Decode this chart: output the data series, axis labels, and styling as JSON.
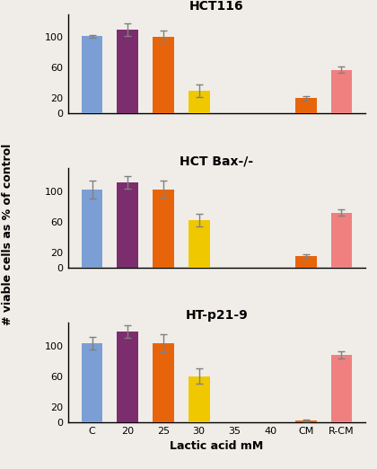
{
  "subplots": [
    {
      "title": "HCT116",
      "values": [
        101,
        110,
        100,
        30,
        0,
        0,
        20,
        57
      ],
      "errors": [
        2,
        8,
        8,
        8,
        0,
        0,
        3,
        4
      ],
      "has_bar": [
        true,
        true,
        true,
        true,
        false,
        false,
        true,
        true
      ]
    },
    {
      "title": "HCT Bax-/-",
      "values": [
        102,
        112,
        102,
        62,
        0,
        0,
        15,
        72
      ],
      "errors": [
        12,
        8,
        12,
        8,
        0,
        0,
        3,
        4
      ],
      "has_bar": [
        true,
        true,
        true,
        true,
        false,
        false,
        true,
        true
      ]
    },
    {
      "title": "HT-p21-9",
      "values": [
        103,
        118,
        103,
        60,
        0,
        0,
        2,
        88
      ],
      "errors": [
        8,
        8,
        12,
        10,
        0,
        0,
        1,
        5
      ],
      "has_bar": [
        true,
        true,
        true,
        true,
        false,
        false,
        true,
        true
      ]
    }
  ],
  "categories": [
    "C",
    "20",
    "25",
    "30",
    "35",
    "40",
    "CM",
    "R-CM"
  ],
  "bar_colors": [
    "#7B9FD4",
    "#7B2D6E",
    "#E8640A",
    "#F0C800",
    "#F0C800",
    "#F0C800",
    "#E8640A",
    "#F08080"
  ],
  "ylim": [
    0,
    130
  ],
  "yticks": [
    0,
    20,
    60,
    100
  ],
  "ylabel": "# viable cells as % of control",
  "xlabel": "Lactic acid mM",
  "figsize": [
    4.2,
    5.22
  ],
  "dpi": 100,
  "bar_width": 0.6,
  "error_capsize": 3,
  "title_fontsize": 10,
  "label_fontsize": 9,
  "tick_fontsize": 8,
  "background_color": "#f0ede8"
}
